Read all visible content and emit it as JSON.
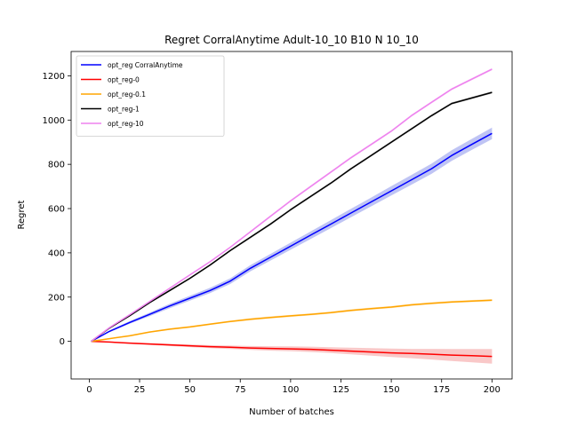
{
  "chart_data": {
    "type": "line",
    "title": "Regret CorralAnytime Adult-10_10 B10 N 10_10",
    "xlabel": "Number of batches",
    "ylabel": "Regret",
    "xlim": [
      -9,
      210
    ],
    "ylim": [
      -170,
      1310
    ],
    "xticks": [
      0,
      25,
      50,
      75,
      100,
      125,
      150,
      175,
      200
    ],
    "yticks": [
      0,
      200,
      400,
      600,
      800,
      1000,
      1200
    ],
    "grid": false,
    "legend_position": "top-left",
    "x": [
      1,
      10,
      20,
      30,
      40,
      50,
      60,
      70,
      80,
      90,
      100,
      110,
      120,
      130,
      140,
      150,
      160,
      170,
      180,
      190,
      200
    ],
    "series": [
      {
        "name": "opt_reg CorralAnytime",
        "color": "#0000ff",
        "band_color": "#aab0f0",
        "values": [
          0,
          45,
          85,
          122,
          160,
          195,
          230,
          272,
          330,
          380,
          430,
          480,
          530,
          580,
          630,
          680,
          730,
          780,
          840,
          890,
          940
        ],
        "band": [
          0,
          4,
          6,
          8,
          10,
          11,
          12,
          13,
          14,
          15,
          16,
          17,
          18,
          19,
          20,
          21,
          22,
          23,
          24,
          25,
          26
        ]
      },
      {
        "name": "opt_reg-0",
        "color": "#ff0000",
        "band_color": "#f7b5b5",
        "values": [
          0,
          -3,
          -8,
          -12,
          -16,
          -20,
          -24,
          -27,
          -30,
          -32,
          -34,
          -36,
          -40,
          -44,
          -48,
          -52,
          -55,
          -58,
          -62,
          -65,
          -68
        ],
        "band": [
          0,
          2,
          3,
          4,
          5,
          6,
          7,
          8,
          9,
          10,
          11,
          12,
          13,
          15,
          17,
          19,
          21,
          24,
          27,
          30,
          33
        ]
      },
      {
        "name": "opt_reg-0.1",
        "color": "#ffa500",
        "band_color": "#fde0b0",
        "values": [
          0,
          12,
          25,
          42,
          55,
          65,
          78,
          90,
          100,
          108,
          115,
          122,
          130,
          140,
          148,
          155,
          165,
          172,
          178,
          182,
          186
        ],
        "band": [
          0,
          2,
          3,
          3,
          4,
          4,
          4,
          4,
          5,
          5,
          5,
          5,
          5,
          5,
          5,
          5,
          5,
          5,
          5,
          5,
          5
        ]
      },
      {
        "name": "opt_reg-1",
        "color": "#000000",
        "band_color": "#b0b0b0",
        "values": [
          0,
          60,
          115,
          175,
          230,
          285,
          345,
          410,
          470,
          530,
          595,
          655,
          715,
          780,
          840,
          900,
          960,
          1020,
          1075,
          1100,
          1125
        ],
        "band": [
          0,
          2,
          3,
          3,
          4,
          4,
          4,
          4,
          5,
          5,
          5,
          5,
          5,
          5,
          5,
          5,
          5,
          5,
          5,
          5,
          5
        ]
      },
      {
        "name": "opt_reg-10",
        "color": "#ee82ee",
        "band_color": "#f8c8f8",
        "values": [
          0,
          62,
          120,
          180,
          240,
          300,
          360,
          425,
          495,
          565,
          635,
          700,
          765,
          830,
          890,
          950,
          1020,
          1080,
          1140,
          1185,
          1230
        ],
        "band": [
          0,
          2,
          3,
          3,
          4,
          4,
          4,
          4,
          5,
          5,
          5,
          5,
          5,
          5,
          5,
          5,
          5,
          5,
          5,
          5,
          5
        ]
      }
    ]
  }
}
